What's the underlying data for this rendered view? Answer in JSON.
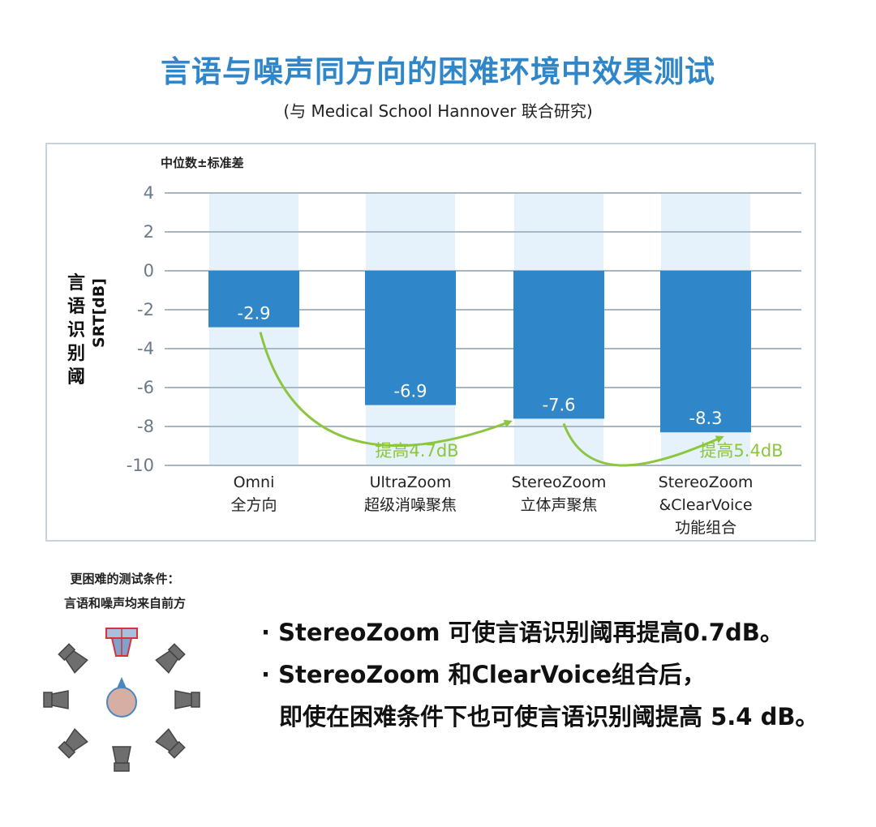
{
  "title": "言语与噪声同方向的困难环境中效果测试",
  "subtitle": "(与 Medical School Hannover 联合研究)",
  "chart_data": {
    "type": "bar",
    "subtitle": "中位数±标准差",
    "ylabel_chars": "言语识别阈",
    "ylabel_unit": "SRT[dB]",
    "ylim": [
      -10,
      4
    ],
    "yticks": [
      4,
      2,
      0,
      -2,
      -4,
      -6,
      -8,
      -10
    ],
    "grid": true,
    "categories": [
      {
        "line1": "Omni",
        "line2": "全方向",
        "line3": ""
      },
      {
        "line1": "UltraZoom",
        "line2": "超级消噪聚焦",
        "line3": ""
      },
      {
        "line1": "StereoZoom",
        "line2": "立体声聚焦",
        "line3": ""
      },
      {
        "line1": "StereoZoom",
        "line2": "&ClearVoice",
        "line3": "功能组合"
      }
    ],
    "values": [
      -2.9,
      -6.9,
      -7.6,
      -8.3
    ],
    "value_labels": [
      "-2.9",
      "-6.9",
      "-7.6",
      "-8.3"
    ],
    "bar_color": "#2f86c8",
    "band_color": "#e6f2fb",
    "arrow_color": "#8cc63f",
    "annotations": [
      {
        "text": "提高4.7dB",
        "from": 0,
        "to": 2
      },
      {
        "text": "提高5.4dB",
        "from": 2,
        "to": 3
      }
    ]
  },
  "bottom_note": {
    "line1": "更困难的测试条件：",
    "line2": "言语和噪声均来自前方"
  },
  "bullets": [
    "· StereoZoom 可使言语识别阈再提高0.7dB。",
    "· StereoZoom 和ClearVoice组合后，",
    "即使在困难条件下也可使言语识别阈提高 5.4 dB。"
  ]
}
